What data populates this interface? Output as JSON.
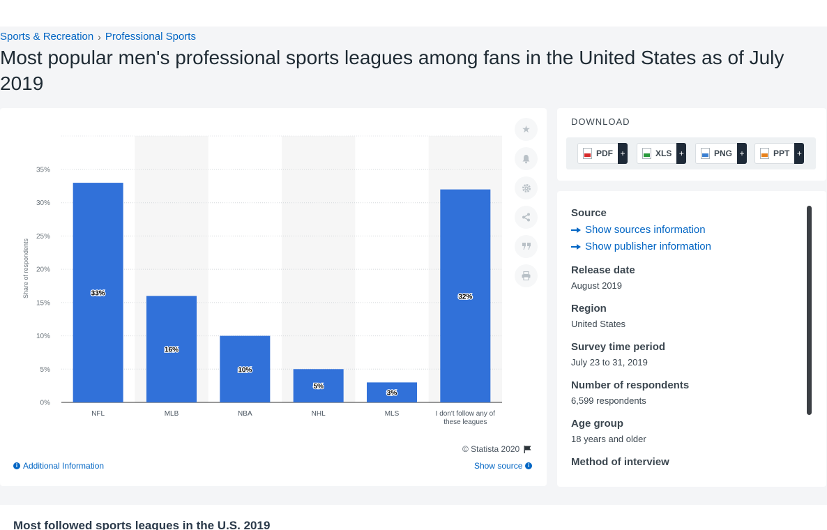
{
  "breadcrumb": [
    "Sports & Recreation",
    "Professional Sports"
  ],
  "page_title": "Most popular men's professional sports leagues among fans in the United States as of July 2019",
  "chart_data": {
    "type": "bar",
    "title": "",
    "xlabel": "",
    "ylabel": "Share of respondents",
    "categories": [
      "NFL",
      "MLB",
      "NBA",
      "NHL",
      "MLS",
      "I don't follow any of these leagues"
    ],
    "values": [
      33,
      16,
      10,
      5,
      3,
      32
    ],
    "value_labels": [
      "33%",
      "16%",
      "10%",
      "5%",
      "3%",
      "32%"
    ],
    "ylim": [
      0,
      35
    ],
    "yticks": [
      "0%",
      "5%",
      "10%",
      "15%",
      "20%",
      "25%",
      "30%",
      "35%"
    ],
    "grid": true,
    "bar_color": "#3171d9"
  },
  "chart_footer": {
    "copyright": "© Statista 2020",
    "additional_info": "Additional Information",
    "show_source": "Show source"
  },
  "tools": [
    "star-icon",
    "bell-icon",
    "gear-icon",
    "share-icon",
    "quote-icon",
    "print-icon"
  ],
  "download": {
    "title": "DOWNLOAD",
    "buttons": [
      {
        "label": "PDF",
        "icon": "pdf-file-icon"
      },
      {
        "label": "XLS",
        "icon": "xls-file-icon"
      },
      {
        "label": "PNG",
        "icon": "png-file-icon"
      },
      {
        "label": "PPT",
        "icon": "ppt-file-icon"
      }
    ],
    "plus": "+"
  },
  "meta": {
    "source_heading": "Source",
    "show_sources": "Show sources information",
    "show_publisher": "Show publisher information",
    "release_heading": "Release date",
    "release_value": "August 2019",
    "region_heading": "Region",
    "region_value": "United States",
    "survey_heading": "Survey time period",
    "survey_value": "July 23 to 31, 2019",
    "respondents_heading": "Number of respondents",
    "respondents_value": "6,599 respondents",
    "age_heading": "Age group",
    "age_value": "18 years and older",
    "method_heading": "Method of interview"
  },
  "related": {
    "title": "Most followed sports leagues in the U.S. 2019"
  }
}
